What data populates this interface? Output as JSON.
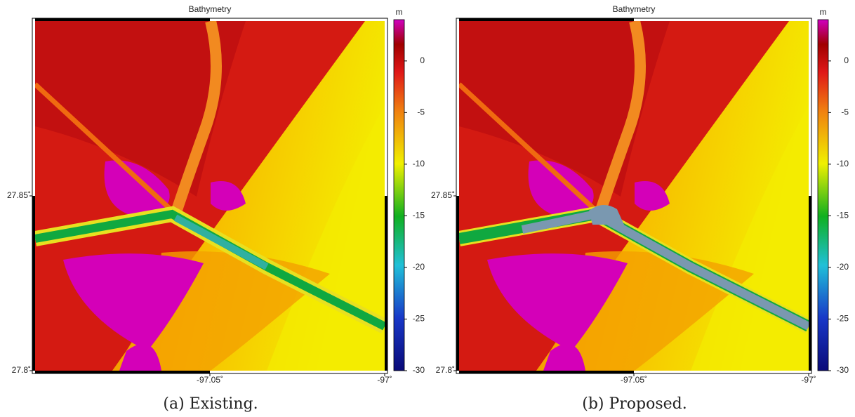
{
  "chart_data": [
    {
      "type": "map",
      "title": "Bathymetry",
      "xlim": [
        -97.1,
        -97
      ],
      "ylim": [
        27.8,
        27.9
      ],
      "xticks": [
        {
          "value": -97.05,
          "label": "-97.05˚"
        },
        {
          "value": -97,
          "label": "-97˚"
        }
      ],
      "yticks": [
        {
          "value": 27.8,
          "label": "27.8˚"
        },
        {
          "value": 27.85,
          "label": "27.85˚"
        }
      ],
      "colorbar": {
        "label": "m",
        "lim": [
          -30,
          4
        ],
        "ticks": [
          -30,
          -25,
          -20,
          -15,
          -10,
          -5,
          0
        ]
      },
      "caption": "(a) Existing."
    },
    {
      "type": "map",
      "title": "Bathymetry",
      "xlim": [
        -97.1,
        -97
      ],
      "ylim": [
        27.8,
        27.9
      ],
      "xticks": [
        {
          "value": -97.05,
          "label": "-97.05˚"
        },
        {
          "value": -97,
          "label": "-97˚"
        }
      ],
      "yticks": [
        {
          "value": 27.8,
          "label": "27.8˚"
        },
        {
          "value": 27.85,
          "label": "27.85˚"
        }
      ],
      "colorbar": {
        "label": "m",
        "lim": [
          -30,
          4
        ],
        "ticks": [
          -30,
          -25,
          -20,
          -15,
          -10,
          -5,
          0
        ]
      },
      "caption": "(b) Proposed."
    }
  ]
}
